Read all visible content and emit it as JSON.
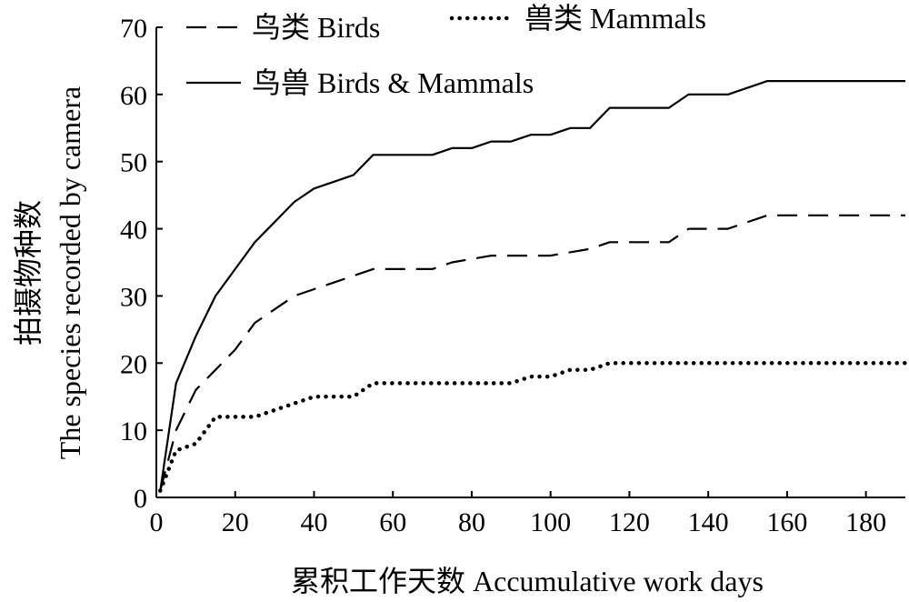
{
  "chart_data": {
    "type": "line",
    "xlabel": "累积工作天数 Accumulative work days",
    "ylabel_cn": "拍摄物种数",
    "ylabel_en": "The species recorded by camera",
    "xlim": [
      0,
      190
    ],
    "ylim": [
      0,
      70
    ],
    "x_ticks": [
      0,
      20,
      40,
      60,
      80,
      100,
      120,
      140,
      160,
      180
    ],
    "y_ticks": [
      0,
      10,
      20,
      30,
      40,
      50,
      60,
      70
    ],
    "grid": false,
    "legend_position": "top-left",
    "series": [
      {
        "name": "鸟类 Birds",
        "style": "dashed",
        "points": [
          [
            1,
            1
          ],
          [
            5,
            10
          ],
          [
            10,
            16
          ],
          [
            15,
            19
          ],
          [
            20,
            22
          ],
          [
            25,
            26
          ],
          [
            30,
            28
          ],
          [
            35,
            30
          ],
          [
            40,
            31
          ],
          [
            45,
            32
          ],
          [
            50,
            33
          ],
          [
            55,
            34
          ],
          [
            60,
            34
          ],
          [
            70,
            34
          ],
          [
            75,
            35
          ],
          [
            85,
            36
          ],
          [
            90,
            36
          ],
          [
            100,
            36
          ],
          [
            110,
            37
          ],
          [
            115,
            38
          ],
          [
            120,
            38
          ],
          [
            130,
            38
          ],
          [
            135,
            40
          ],
          [
            145,
            40
          ],
          [
            155,
            42
          ],
          [
            160,
            42
          ],
          [
            190,
            42
          ]
        ]
      },
      {
        "name": "兽类 Mammals",
        "style": "dotted",
        "points": [
          [
            1,
            1
          ],
          [
            5,
            7
          ],
          [
            10,
            8
          ],
          [
            15,
            12
          ],
          [
            20,
            12
          ],
          [
            25,
            12
          ],
          [
            30,
            13
          ],
          [
            35,
            14
          ],
          [
            40,
            15
          ],
          [
            45,
            15
          ],
          [
            50,
            15
          ],
          [
            55,
            17
          ],
          [
            60,
            17
          ],
          [
            70,
            17
          ],
          [
            80,
            17
          ],
          [
            90,
            17
          ],
          [
            95,
            18
          ],
          [
            100,
            18
          ],
          [
            105,
            19
          ],
          [
            110,
            19
          ],
          [
            115,
            20
          ],
          [
            120,
            20
          ],
          [
            130,
            20
          ],
          [
            140,
            20
          ],
          [
            150,
            20
          ],
          [
            160,
            20
          ],
          [
            170,
            20
          ],
          [
            180,
            20
          ],
          [
            190,
            20
          ]
        ]
      },
      {
        "name": "鸟兽 Birds & Mammals",
        "style": "solid",
        "points": [
          [
            1,
            1
          ],
          [
            5,
            17
          ],
          [
            10,
            24
          ],
          [
            15,
            30
          ],
          [
            20,
            34
          ],
          [
            25,
            38
          ],
          [
            30,
            41
          ],
          [
            35,
            44
          ],
          [
            40,
            46
          ],
          [
            45,
            47
          ],
          [
            50,
            48
          ],
          [
            55,
            51
          ],
          [
            60,
            51
          ],
          [
            70,
            51
          ],
          [
            75,
            52
          ],
          [
            80,
            52
          ],
          [
            85,
            53
          ],
          [
            90,
            53
          ],
          [
            95,
            54
          ],
          [
            100,
            54
          ],
          [
            105,
            55
          ],
          [
            110,
            55
          ],
          [
            115,
            58
          ],
          [
            120,
            58
          ],
          [
            130,
            58
          ],
          [
            135,
            60
          ],
          [
            145,
            60
          ],
          [
            155,
            62
          ],
          [
            165,
            62
          ],
          [
            190,
            62
          ]
        ]
      }
    ]
  }
}
